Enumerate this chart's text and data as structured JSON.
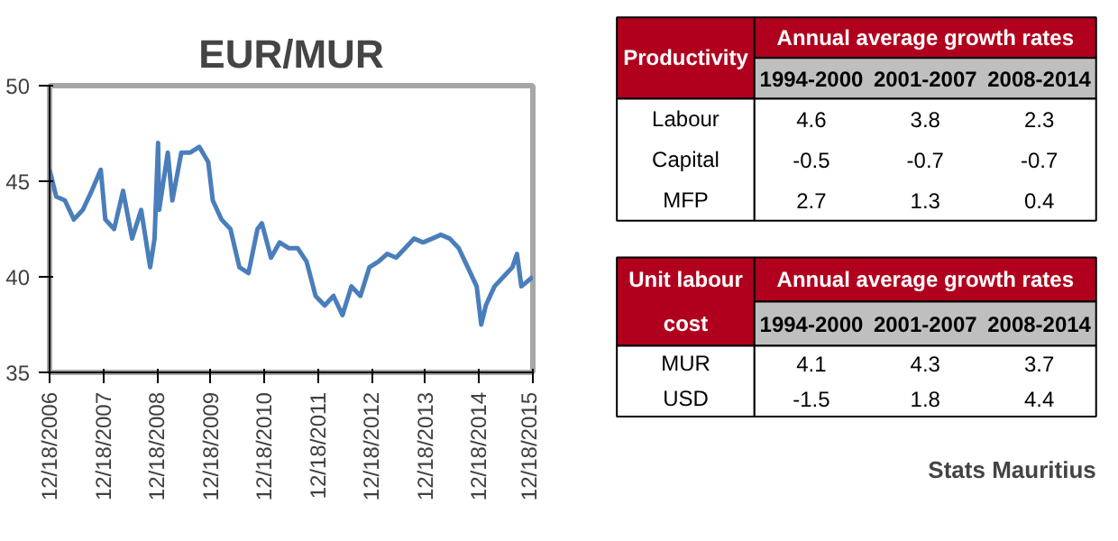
{
  "chart_data": [
    {
      "type": "line",
      "title": "EUR/MUR",
      "ylim": [
        35,
        50
      ],
      "yticks": [
        35,
        40,
        45,
        50
      ],
      "grid": false,
      "line_style": "solid",
      "xlim": [
        "2006-12-18",
        "2015-12-18"
      ],
      "xticks": [
        {
          "value": "2006-12-18",
          "label": "12/18/2006"
        },
        {
          "value": "2007-12-18",
          "label": "12/18/2007"
        },
        {
          "value": "2008-12-18",
          "label": "12/18/2008"
        },
        {
          "value": "2009-12-18",
          "label": "12/18/2009"
        },
        {
          "value": "2010-12-18",
          "label": "12/18/2010"
        },
        {
          "value": "2011-12-18",
          "label": "12/18/2011"
        },
        {
          "value": "2012-12-18",
          "label": "12/18/2012"
        },
        {
          "value": "2013-12-18",
          "label": "12/18/2013"
        },
        {
          "value": "2014-12-18",
          "label": "12/18/2014"
        },
        {
          "value": "2015-12-18",
          "label": "12/18/2015"
        }
      ],
      "x": [
        "2006-12-18",
        "2007-02",
        "2007-04",
        "2007-06",
        "2007-08",
        "2007-10",
        "2007-12",
        "2008-01",
        "2008-03",
        "2008-05",
        "2008-07",
        "2008-09",
        "2008-11",
        "2008-12",
        "2008-12-25",
        "2009-01",
        "2009-03",
        "2009-04",
        "2009-06",
        "2009-08",
        "2009-10",
        "2009-12",
        "2010-01",
        "2010-03",
        "2010-05",
        "2010-07",
        "2010-09",
        "2010-11",
        "2010-12",
        "2011-02",
        "2011-04",
        "2011-06",
        "2011-08",
        "2011-10",
        "2011-12",
        "2012-02",
        "2012-04",
        "2012-06",
        "2012-08",
        "2012-10",
        "2012-12",
        "2013-02",
        "2013-04",
        "2013-06",
        "2013-08",
        "2013-10",
        "2013-12",
        "2014-02",
        "2014-04",
        "2014-06",
        "2014-08",
        "2014-10",
        "2014-12",
        "2015-01",
        "2015-02",
        "2015-04",
        "2015-06",
        "2015-08",
        "2015-09",
        "2015-10",
        "2015-12-18"
      ],
      "series": [
        {
          "color": "#4a7ebb",
          "values": [
            45.6,
            44.2,
            44.0,
            43.0,
            43.5,
            44.5,
            45.6,
            43.0,
            42.5,
            44.5,
            42.0,
            43.5,
            40.5,
            42.0,
            47.0,
            43.5,
            46.5,
            44.0,
            46.5,
            46.5,
            46.8,
            46.0,
            44.0,
            43.0,
            42.5,
            40.5,
            40.2,
            42.5,
            42.8,
            41.0,
            41.8,
            41.5,
            41.5,
            40.8,
            39.0,
            38.5,
            39.0,
            38.0,
            39.5,
            39.0,
            40.5,
            40.8,
            41.2,
            41.0,
            41.5,
            42.0,
            41.8,
            42.0,
            42.2,
            42.0,
            41.5,
            40.5,
            39.5,
            37.5,
            38.5,
            39.5,
            40.0,
            40.5,
            41.2,
            39.5,
            40.0
          ]
        }
      ]
    },
    {
      "type": "heatmap",
      "title": "Annual average growth rates",
      "ylabel": "Productivity",
      "data_labels": true,
      "categories": [
        "1994-2000",
        "2001-2007",
        "2008-2014"
      ],
      "y_categories": [
        "Labour",
        "Capital",
        "MFP"
      ],
      "cells": [
        [
          4.6,
          3.8,
          2.3
        ],
        [
          -0.5,
          -0.7,
          -0.7
        ],
        [
          2.7,
          1.3,
          0.4
        ]
      ]
    },
    {
      "type": "heatmap",
      "title": "Annual average growth rates",
      "ylabel": "Unit labour cost",
      "data_labels": true,
      "categories": [
        "1994-2000",
        "2001-2007",
        "2008-2014"
      ],
      "y_categories": [
        "MUR",
        "USD"
      ],
      "cells": [
        [
          4.1,
          4.3,
          3.7
        ],
        [
          -1.5,
          1.8,
          4.4
        ]
      ],
      "annotations": [
        "Stats Mauritius"
      ]
    }
  ]
}
